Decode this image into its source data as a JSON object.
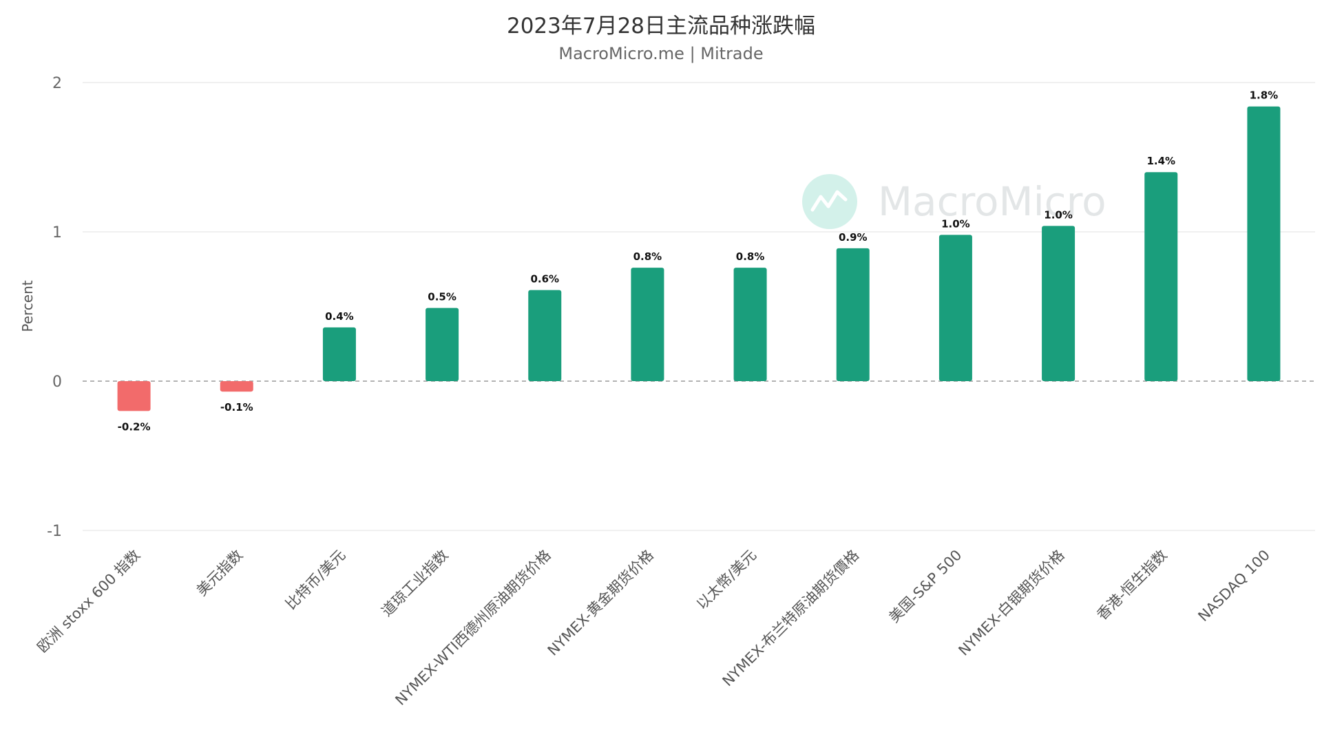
{
  "chart_data": {
    "type": "bar",
    "title": "2023年7月28日主流品种涨跌幅",
    "subtitle": "MacroMicro.me | Mitrade",
    "ylabel": "Percent",
    "ylim": [
      -1,
      2
    ],
    "yticks": [
      -1,
      0,
      1,
      2
    ],
    "grid": true,
    "legend": "none",
    "watermark": "MacroMicro",
    "categories": [
      "欧洲 stoxx 600 指数",
      "美元指数",
      "比特币/美元",
      "道琼工业指数",
      "NYMEX-WTI西德州原油期货价格",
      "NYMEX-黄金期货价格",
      "以太幣/美元",
      "NYMEX-布兰特原油期货價格",
      "美国-S&P 500",
      "NYMEX-白银期货价格",
      "香港-恒生指数",
      "NASDAQ 100"
    ],
    "values": [
      -0.2,
      -0.07,
      0.36,
      0.49,
      0.61,
      0.76,
      0.76,
      0.89,
      0.98,
      1.04,
      1.4,
      1.84
    ],
    "data_labels": [
      "-0.2%",
      "-0.1%",
      "0.4%",
      "0.5%",
      "0.6%",
      "0.8%",
      "0.8%",
      "0.9%",
      "1.0%",
      "1.0%",
      "1.4%",
      "1.8%"
    ],
    "colors": {
      "positive": "#1a9e7c",
      "negative": "#f26b6b"
    }
  }
}
